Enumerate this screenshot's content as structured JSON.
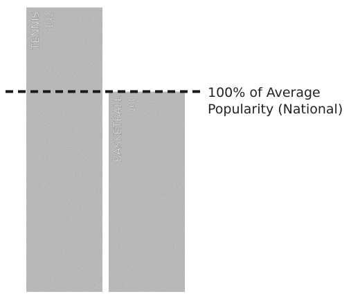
{
  "chart_data": {
    "type": "bar",
    "orientation": "vertical",
    "categories": [
      "TENNIS",
      "BASKETBALL"
    ],
    "values": [
      142,
      100
    ],
    "value_labels": [
      "142",
      "100"
    ],
    "unit": "% of average popularity",
    "ylim": [
      0,
      144
    ],
    "reference_line": {
      "value": 100,
      "style": "dashed",
      "label_lines": [
        "100% of Average",
        "Popularity (National)"
      ]
    },
    "bar_color": "#c4c4c4",
    "title": "",
    "xlabel": "",
    "ylabel": "",
    "grid": false,
    "legend": "none"
  }
}
